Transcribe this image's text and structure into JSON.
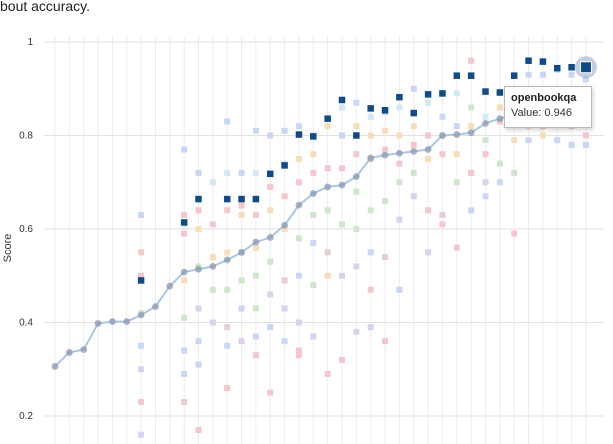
{
  "intro_text": "bout accuracy.",
  "tooltip": {
    "title": "openbookqa",
    "value_text": "Value: 0.946"
  },
  "chart_data": {
    "type": "scatter",
    "ylabel": "Score",
    "ylim": [
      0.175,
      1.0
    ],
    "yticks": [
      0.2,
      0.4,
      0.6,
      0.8,
      1
    ],
    "ytick_labels": [
      "0.2",
      "0.4",
      "0.6",
      "0.8",
      "1"
    ],
    "grid": true,
    "x_count": 28,
    "highlight_color": "#0e4b8a",
    "line_color": "#aac7e3",
    "point_color": "#8b98b4",
    "faded_colors": [
      "#c9d6f5",
      "#f5c7cd",
      "#cfe6cc",
      "#f7ddb8",
      "#dbd0ee",
      "#e4d0cc",
      "#cfeaf2",
      "#e8d6ee"
    ],
    "average": {
      "name": "average",
      "values": [
        0.306,
        0.336,
        0.342,
        0.398,
        0.402,
        0.402,
        0.416,
        0.434,
        0.478,
        0.508,
        0.514,
        0.52,
        0.534,
        0.55,
        0.572,
        0.582,
        0.608,
        0.651,
        0.676,
        0.69,
        0.694,
        0.712,
        0.752,
        0.758,
        0.762,
        0.766,
        0.77,
        0.8,
        0.802,
        0.806,
        0.826,
        0.836,
        0.846,
        0.854
      ]
    },
    "highlight_series": {
      "name": "openbookqa",
      "points": [
        {
          "x": 6,
          "y": 0.49
        },
        {
          "x": 9,
          "y": 0.614
        },
        {
          "x": 10,
          "y": 0.664
        },
        {
          "x": 12,
          "y": 0.664
        },
        {
          "x": 13,
          "y": 0.664
        },
        {
          "x": 14,
          "y": 0.664
        },
        {
          "x": 15,
          "y": 0.718
        },
        {
          "x": 16,
          "y": 0.736
        },
        {
          "x": 17,
          "y": 0.802
        },
        {
          "x": 18,
          "y": 0.798
        },
        {
          "x": 19,
          "y": 0.836
        },
        {
          "x": 20,
          "y": 0.876
        },
        {
          "x": 21,
          "y": 0.8
        },
        {
          "x": 22,
          "y": 0.858
        },
        {
          "x": 23,
          "y": 0.854
        },
        {
          "x": 24,
          "y": 0.882
        },
        {
          "x": 25,
          "y": 0.848
        },
        {
          "x": 26,
          "y": 0.888
        },
        {
          "x": 27,
          "y": 0.89
        },
        {
          "x": 28,
          "y": 0.928
        },
        {
          "x": 29,
          "y": 0.928
        },
        {
          "x": 30,
          "y": 0.894
        },
        {
          "x": 31,
          "y": 0.892
        },
        {
          "x": 32,
          "y": 0.928
        },
        {
          "x": 33,
          "y": 0.96
        },
        {
          "x": 34,
          "y": 0.958
        },
        {
          "x": 35,
          "y": 0.944
        },
        {
          "x": 36,
          "y": 0.946
        },
        {
          "x": 37,
          "y": 0.946
        }
      ]
    },
    "faded_points": [
      {
        "x": 6,
        "y": 0.63,
        "c": 0
      },
      {
        "x": 6,
        "y": 0.55,
        "c": 1
      },
      {
        "x": 6,
        "y": 0.5,
        "c": 1
      },
      {
        "x": 6,
        "y": 0.42,
        "c": 2
      },
      {
        "x": 6,
        "y": 0.35,
        "c": 0
      },
      {
        "x": 6,
        "y": 0.3,
        "c": 4
      },
      {
        "x": 6,
        "y": 0.23,
        "c": 1
      },
      {
        "x": 6,
        "y": 0.16,
        "c": 4
      },
      {
        "x": 9,
        "y": 0.77,
        "c": 0
      },
      {
        "x": 9,
        "y": 0.63,
        "c": 1
      },
      {
        "x": 9,
        "y": 0.59,
        "c": 1
      },
      {
        "x": 9,
        "y": 0.49,
        "c": 3
      },
      {
        "x": 9,
        "y": 0.41,
        "c": 2
      },
      {
        "x": 9,
        "y": 0.34,
        "c": 0
      },
      {
        "x": 9,
        "y": 0.29,
        "c": 0
      },
      {
        "x": 9,
        "y": 0.23,
        "c": 5
      },
      {
        "x": 10,
        "y": 0.72,
        "c": 0
      },
      {
        "x": 10,
        "y": 0.64,
        "c": 1
      },
      {
        "x": 10,
        "y": 0.6,
        "c": 3
      },
      {
        "x": 10,
        "y": 0.52,
        "c": 2
      },
      {
        "x": 10,
        "y": 0.43,
        "c": 4
      },
      {
        "x": 10,
        "y": 0.36,
        "c": 0
      },
      {
        "x": 10,
        "y": 0.31,
        "c": 0
      },
      {
        "x": 10,
        "y": 0.17,
        "c": 1
      },
      {
        "x": 11,
        "y": 0.7,
        "c": 6
      },
      {
        "x": 11,
        "y": 0.61,
        "c": 1
      },
      {
        "x": 11,
        "y": 0.54,
        "c": 3
      },
      {
        "x": 11,
        "y": 0.47,
        "c": 2
      },
      {
        "x": 11,
        "y": 0.4,
        "c": 4
      },
      {
        "x": 12,
        "y": 0.83,
        "c": 0
      },
      {
        "x": 12,
        "y": 0.72,
        "c": 6
      },
      {
        "x": 12,
        "y": 0.64,
        "c": 1
      },
      {
        "x": 12,
        "y": 0.55,
        "c": 3
      },
      {
        "x": 12,
        "y": 0.47,
        "c": 2
      },
      {
        "x": 12,
        "y": 0.39,
        "c": 5
      },
      {
        "x": 12,
        "y": 0.35,
        "c": 0
      },
      {
        "x": 12,
        "y": 0.26,
        "c": 1
      },
      {
        "x": 13,
        "y": 0.72,
        "c": 0
      },
      {
        "x": 13,
        "y": 0.65,
        "c": 1
      },
      {
        "x": 13,
        "y": 0.63,
        "c": 3
      },
      {
        "x": 13,
        "y": 0.55,
        "c": 5
      },
      {
        "x": 13,
        "y": 0.49,
        "c": 2
      },
      {
        "x": 13,
        "y": 0.43,
        "c": 0
      },
      {
        "x": 13,
        "y": 0.36,
        "c": 4
      },
      {
        "x": 14,
        "y": 0.81,
        "c": 0
      },
      {
        "x": 14,
        "y": 0.72,
        "c": 6
      },
      {
        "x": 14,
        "y": 0.63,
        "c": 1
      },
      {
        "x": 14,
        "y": 0.56,
        "c": 3
      },
      {
        "x": 14,
        "y": 0.5,
        "c": 2
      },
      {
        "x": 14,
        "y": 0.43,
        "c": 2
      },
      {
        "x": 14,
        "y": 0.37,
        "c": 0
      },
      {
        "x": 14,
        "y": 0.33,
        "c": 1
      },
      {
        "x": 15,
        "y": 0.8,
        "c": 0
      },
      {
        "x": 15,
        "y": 0.69,
        "c": 1
      },
      {
        "x": 15,
        "y": 0.64,
        "c": 3
      },
      {
        "x": 15,
        "y": 0.53,
        "c": 2
      },
      {
        "x": 15,
        "y": 0.46,
        "c": 4
      },
      {
        "x": 15,
        "y": 0.39,
        "c": 0
      },
      {
        "x": 15,
        "y": 0.25,
        "c": 1
      },
      {
        "x": 16,
        "y": 0.81,
        "c": 0
      },
      {
        "x": 16,
        "y": 0.74,
        "c": 6
      },
      {
        "x": 16,
        "y": 0.67,
        "c": 1
      },
      {
        "x": 16,
        "y": 0.6,
        "c": 3
      },
      {
        "x": 16,
        "y": 0.49,
        "c": 5
      },
      {
        "x": 16,
        "y": 0.43,
        "c": 4
      },
      {
        "x": 16,
        "y": 0.36,
        "c": 0
      },
      {
        "x": 17,
        "y": 0.82,
        "c": 0
      },
      {
        "x": 17,
        "y": 0.75,
        "c": 3
      },
      {
        "x": 17,
        "y": 0.7,
        "c": 1
      },
      {
        "x": 17,
        "y": 0.58,
        "c": 2
      },
      {
        "x": 17,
        "y": 0.5,
        "c": 0
      },
      {
        "x": 17,
        "y": 0.4,
        "c": 4
      },
      {
        "x": 17,
        "y": 0.34,
        "c": 1
      },
      {
        "x": 17,
        "y": 0.33,
        "c": 1
      },
      {
        "x": 18,
        "y": 0.8,
        "c": 0
      },
      {
        "x": 18,
        "y": 0.76,
        "c": 3
      },
      {
        "x": 18,
        "y": 0.72,
        "c": 1
      },
      {
        "x": 18,
        "y": 0.63,
        "c": 2
      },
      {
        "x": 18,
        "y": 0.57,
        "c": 0
      },
      {
        "x": 18,
        "y": 0.48,
        "c": 2
      },
      {
        "x": 18,
        "y": 0.37,
        "c": 4
      },
      {
        "x": 19,
        "y": 0.82,
        "c": 3
      },
      {
        "x": 19,
        "y": 0.73,
        "c": 1
      },
      {
        "x": 19,
        "y": 0.64,
        "c": 2
      },
      {
        "x": 19,
        "y": 0.55,
        "c": 5
      },
      {
        "x": 19,
        "y": 0.5,
        "c": 3
      },
      {
        "x": 19,
        "y": 0.29,
        "c": 1
      },
      {
        "x": 20,
        "y": 0.86,
        "c": 6
      },
      {
        "x": 20,
        "y": 0.8,
        "c": 0
      },
      {
        "x": 20,
        "y": 0.73,
        "c": 1
      },
      {
        "x": 20,
        "y": 0.61,
        "c": 2
      },
      {
        "x": 20,
        "y": 0.5,
        "c": 4
      },
      {
        "x": 20,
        "y": 0.32,
        "c": 1
      },
      {
        "x": 21,
        "y": 0.87,
        "c": 0
      },
      {
        "x": 21,
        "y": 0.82,
        "c": 3
      },
      {
        "x": 21,
        "y": 0.76,
        "c": 1
      },
      {
        "x": 21,
        "y": 0.68,
        "c": 2
      },
      {
        "x": 21,
        "y": 0.6,
        "c": 2
      },
      {
        "x": 21,
        "y": 0.52,
        "c": 4
      },
      {
        "x": 21,
        "y": 0.38,
        "c": 4
      },
      {
        "x": 22,
        "y": 0.84,
        "c": 6
      },
      {
        "x": 22,
        "y": 0.8,
        "c": 3
      },
      {
        "x": 22,
        "y": 0.75,
        "c": 1
      },
      {
        "x": 22,
        "y": 0.64,
        "c": 2
      },
      {
        "x": 22,
        "y": 0.55,
        "c": 0
      },
      {
        "x": 22,
        "y": 0.47,
        "c": 1
      },
      {
        "x": 22,
        "y": 0.39,
        "c": 4
      },
      {
        "x": 23,
        "y": 0.85,
        "c": 0
      },
      {
        "x": 23,
        "y": 0.81,
        "c": 3
      },
      {
        "x": 23,
        "y": 0.77,
        "c": 1
      },
      {
        "x": 23,
        "y": 0.66,
        "c": 2
      },
      {
        "x": 23,
        "y": 0.54,
        "c": 5
      },
      {
        "x": 23,
        "y": 0.36,
        "c": 1
      },
      {
        "x": 24,
        "y": 0.86,
        "c": 6
      },
      {
        "x": 24,
        "y": 0.8,
        "c": 3
      },
      {
        "x": 24,
        "y": 0.74,
        "c": 1
      },
      {
        "x": 24,
        "y": 0.7,
        "c": 2
      },
      {
        "x": 24,
        "y": 0.62,
        "c": 4
      },
      {
        "x": 24,
        "y": 0.47,
        "c": 0
      },
      {
        "x": 25,
        "y": 0.9,
        "c": 0
      },
      {
        "x": 25,
        "y": 0.82,
        "c": 3
      },
      {
        "x": 25,
        "y": 0.78,
        "c": 1
      },
      {
        "x": 25,
        "y": 0.72,
        "c": 2
      },
      {
        "x": 25,
        "y": 0.67,
        "c": 4
      },
      {
        "x": 26,
        "y": 0.87,
        "c": 6
      },
      {
        "x": 26,
        "y": 0.8,
        "c": 1
      },
      {
        "x": 26,
        "y": 0.75,
        "c": 3
      },
      {
        "x": 26,
        "y": 0.64,
        "c": 1
      },
      {
        "x": 26,
        "y": 0.55,
        "c": 4
      },
      {
        "x": 27,
        "y": 0.84,
        "c": 0
      },
      {
        "x": 27,
        "y": 0.8,
        "c": 3
      },
      {
        "x": 27,
        "y": 0.76,
        "c": 1
      },
      {
        "x": 27,
        "y": 0.63,
        "c": 5
      },
      {
        "x": 27,
        "y": 0.61,
        "c": 1
      },
      {
        "x": 28,
        "y": 0.89,
        "c": 6
      },
      {
        "x": 28,
        "y": 0.82,
        "c": 0
      },
      {
        "x": 28,
        "y": 0.76,
        "c": 3
      },
      {
        "x": 28,
        "y": 0.7,
        "c": 2
      },
      {
        "x": 28,
        "y": 0.56,
        "c": 1
      },
      {
        "x": 29,
        "y": 0.96,
        "c": 1
      },
      {
        "x": 29,
        "y": 0.86,
        "c": 2
      },
      {
        "x": 29,
        "y": 0.82,
        "c": 3
      },
      {
        "x": 29,
        "y": 0.72,
        "c": 1
      },
      {
        "x": 29,
        "y": 0.64,
        "c": 0
      },
      {
        "x": 30,
        "y": 0.84,
        "c": 6
      },
      {
        "x": 30,
        "y": 0.79,
        "c": 2
      },
      {
        "x": 30,
        "y": 0.76,
        "c": 1
      },
      {
        "x": 30,
        "y": 0.7,
        "c": 4
      },
      {
        "x": 30,
        "y": 0.67,
        "c": 0
      },
      {
        "x": 31,
        "y": 0.86,
        "c": 3
      },
      {
        "x": 31,
        "y": 0.83,
        "c": 1
      },
      {
        "x": 31,
        "y": 0.74,
        "c": 2
      },
      {
        "x": 31,
        "y": 0.7,
        "c": 0
      },
      {
        "x": 32,
        "y": 0.89,
        "c": 2
      },
      {
        "x": 32,
        "y": 0.85,
        "c": 1
      },
      {
        "x": 32,
        "y": 0.79,
        "c": 3
      },
      {
        "x": 32,
        "y": 0.72,
        "c": 2
      },
      {
        "x": 32,
        "y": 0.59,
        "c": 1
      },
      {
        "x": 33,
        "y": 0.93,
        "c": 0
      },
      {
        "x": 33,
        "y": 0.89,
        "c": 6
      },
      {
        "x": 33,
        "y": 0.82,
        "c": 3
      },
      {
        "x": 33,
        "y": 0.79,
        "c": 0
      },
      {
        "x": 34,
        "y": 0.93,
        "c": 0
      },
      {
        "x": 34,
        "y": 0.88,
        "c": 2
      },
      {
        "x": 34,
        "y": 0.82,
        "c": 1
      },
      {
        "x": 34,
        "y": 0.8,
        "c": 3
      },
      {
        "x": 35,
        "y": 0.94,
        "c": 6
      },
      {
        "x": 35,
        "y": 0.88,
        "c": 2
      },
      {
        "x": 35,
        "y": 0.84,
        "c": 1
      },
      {
        "x": 35,
        "y": 0.79,
        "c": 0
      },
      {
        "x": 36,
        "y": 0.93,
        "c": 0
      },
      {
        "x": 36,
        "y": 0.86,
        "c": 3
      },
      {
        "x": 36,
        "y": 0.82,
        "c": 1
      },
      {
        "x": 36,
        "y": 0.78,
        "c": 0
      },
      {
        "x": 37,
        "y": 0.92,
        "c": 0
      },
      {
        "x": 37,
        "y": 0.86,
        "c": 3
      },
      {
        "x": 37,
        "y": 0.8,
        "c": 1
      },
      {
        "x": 37,
        "y": 0.78,
        "c": 0
      }
    ]
  }
}
